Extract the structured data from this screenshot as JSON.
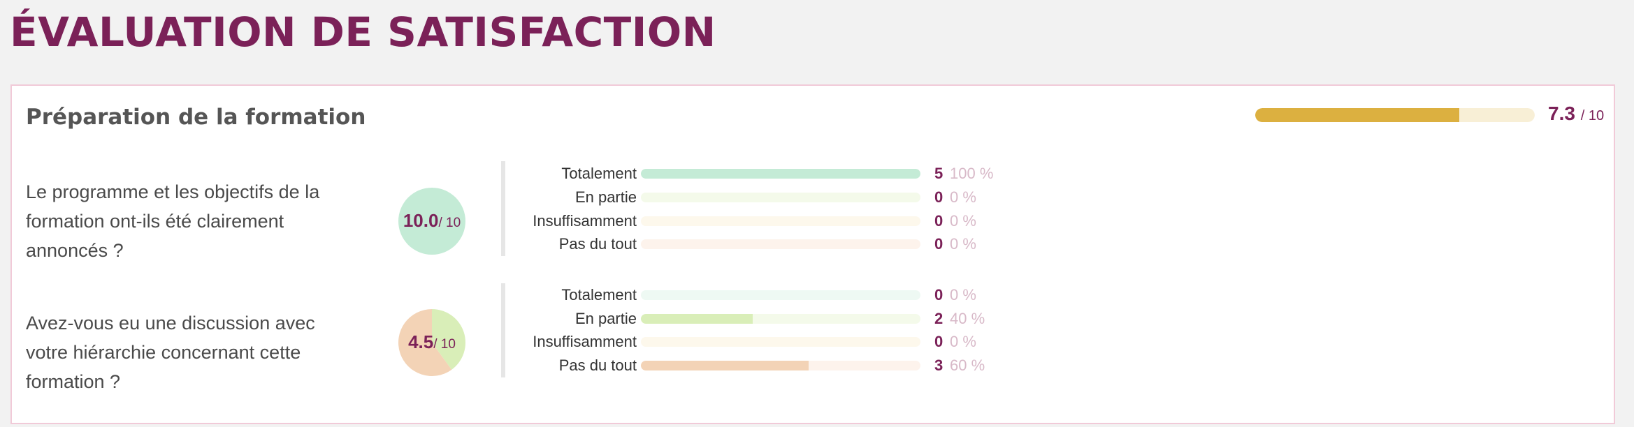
{
  "page": {
    "title": "ÉVALUATION DE SATISFACTION"
  },
  "chart_data": {
    "type": "bar",
    "section": {
      "title": "Préparation de la formation",
      "score": "7.3",
      "score_value": 7.3,
      "score_max": "/ 10",
      "score_fill_color": "#dcb040",
      "score_track_color": "#f8efd6"
    },
    "questions": [
      {
        "text": "Le programme et les objectifs de la formation ont-ils été clairement annoncés ?",
        "score": "10.0",
        "score_max": "/ 10",
        "answers": [
          {
            "label": "Totalement",
            "count": "5",
            "percent_label": "100 %",
            "percent": 100,
            "fill_color": "#c4ebd6",
            "track_color": "#eef9f3"
          },
          {
            "label": "En partie",
            "count": "0",
            "percent_label": "0 %",
            "percent": 0,
            "fill_color": "#d9eeb8",
            "track_color": "#f4faea"
          },
          {
            "label": "Insuffisamment",
            "count": "0",
            "percent_label": "0 %",
            "percent": 0,
            "fill_color": "#f7e6c2",
            "track_color": "#fdf8ec"
          },
          {
            "label": "Pas du tout",
            "count": "0",
            "percent_label": "0 %",
            "percent": 0,
            "fill_color": "#f3d3b6",
            "track_color": "#fdf3ec"
          }
        ]
      },
      {
        "text": "Avez-vous eu une discussion avec votre hiérarchie concernant cette formation ?",
        "score": "4.5",
        "score_max": "/ 10",
        "answers": [
          {
            "label": "Totalement",
            "count": "0",
            "percent_label": "0 %",
            "percent": 0,
            "fill_color": "#c4ebd6",
            "track_color": "#eef9f3"
          },
          {
            "label": "En partie",
            "count": "2",
            "percent_label": "40 %",
            "percent": 40,
            "fill_color": "#d9eeb8",
            "track_color": "#f4faea"
          },
          {
            "label": "Insuffisamment",
            "count": "0",
            "percent_label": "0 %",
            "percent": 0,
            "fill_color": "#f7e6c2",
            "track_color": "#fdf8ec"
          },
          {
            "label": "Pas du tout",
            "count": "3",
            "percent_label": "60 %",
            "percent": 60,
            "fill_color": "#f3d3b6",
            "track_color": "#fdf3ec"
          }
        ]
      }
    ]
  }
}
